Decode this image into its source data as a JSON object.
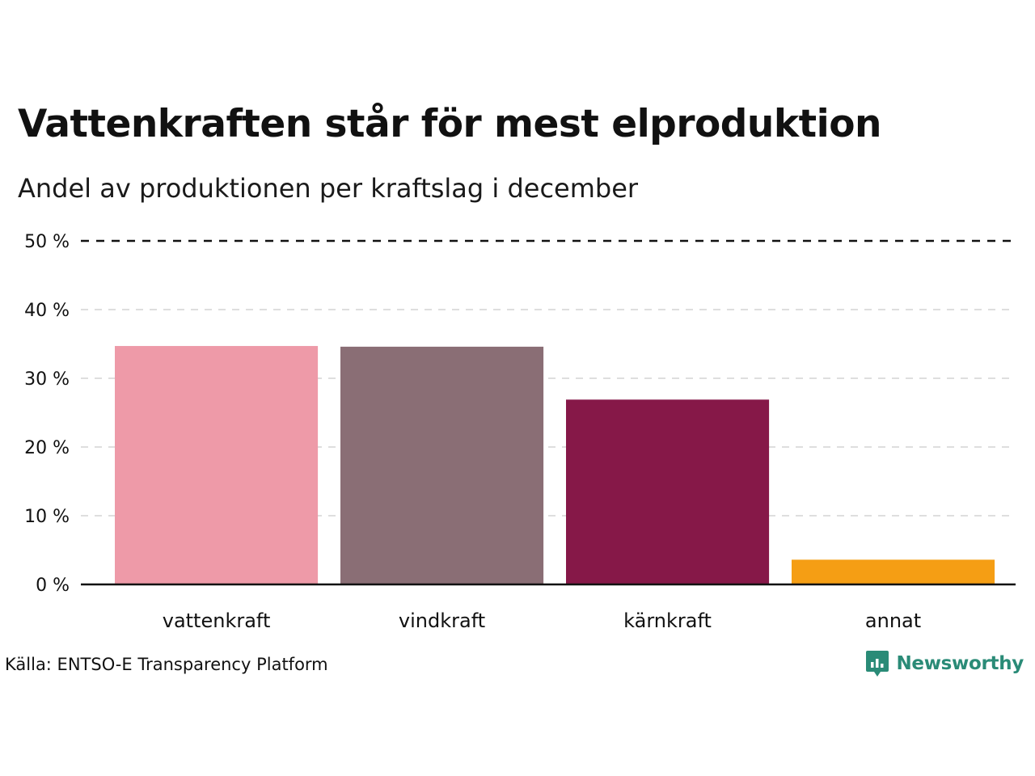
{
  "title": "Vattenkraften står för mest elproduktion",
  "subtitle": "Andel av produktionen per kraftslag i december",
  "source": "Källa: ENTSO-E Transparency Platform",
  "brand": {
    "name": "Newsworthy",
    "icon": "newsworthy-logo-icon",
    "color": "#2a8b77"
  },
  "chart_data": {
    "type": "bar",
    "categories": [
      "vattenkraft",
      "vindkraft",
      "kärnkraft",
      "annat"
    ],
    "values": [
      34.7,
      34.6,
      26.9,
      3.6
    ],
    "colors": [
      "#ee9aa8",
      "#8a6e75",
      "#861848",
      "#f59e14"
    ],
    "unit": "%",
    "ylim": [
      0,
      50
    ],
    "yticks": [
      0,
      10,
      20,
      30,
      40,
      50
    ],
    "ytick_labels": [
      "0 %",
      "10 %",
      "20 %",
      "30 %",
      "40 %",
      "50 %"
    ],
    "grid": "horizontal dashed",
    "reference_line": 50,
    "xlabel": "",
    "ylabel": ""
  }
}
